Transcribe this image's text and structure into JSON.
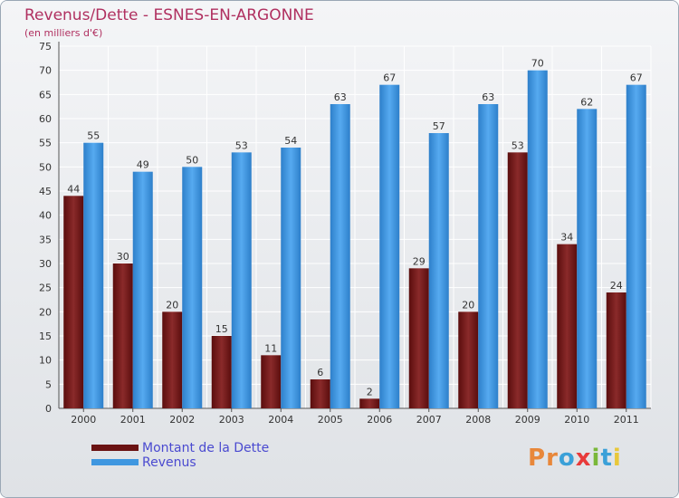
{
  "header": {
    "title": "Revenus/Dette - ESNES-EN-ARGONNE",
    "subtitle": "(en milliers d'€)"
  },
  "logo": {
    "text": "Proxiti",
    "letters": [
      {
        "ch": "P",
        "color": "#e8873a"
      },
      {
        "ch": "r",
        "color": "#e8873a"
      },
      {
        "ch": "o",
        "color": "#3aa0d8"
      },
      {
        "ch": "x",
        "color": "#e83a3a"
      },
      {
        "ch": "i",
        "color": "#7ab83a"
      },
      {
        "ch": "t",
        "color": "#3aa0d8"
      },
      {
        "ch": "i",
        "color": "#e8c83a"
      }
    ]
  },
  "chart_data": {
    "type": "bar",
    "title": "Revenus/Dette - ESNES-EN-ARGONNE",
    "subtitle": "(en milliers d'€)",
    "categories": [
      "2000",
      "2001",
      "2002",
      "2003",
      "2004",
      "2005",
      "2006",
      "2007",
      "2008",
      "2009",
      "2010",
      "2011"
    ],
    "series": [
      {
        "name": "Montant de la Dette",
        "color": "#7a1a1a",
        "values": [
          44,
          30,
          20,
          15,
          11,
          6,
          2,
          29,
          20,
          53,
          34,
          24
        ]
      },
      {
        "name": "Revenus",
        "color": "#3f97e0",
        "values": [
          55,
          49,
          50,
          53,
          54,
          63,
          67,
          57,
          63,
          70,
          62,
          67
        ]
      }
    ],
    "ylim": [
      0,
      75
    ],
    "yticks": [
      0,
      5,
      10,
      15,
      20,
      25,
      30,
      35,
      40,
      45,
      50,
      55,
      60,
      65,
      70,
      75
    ],
    "grid": true,
    "legend": "bottom-left"
  }
}
